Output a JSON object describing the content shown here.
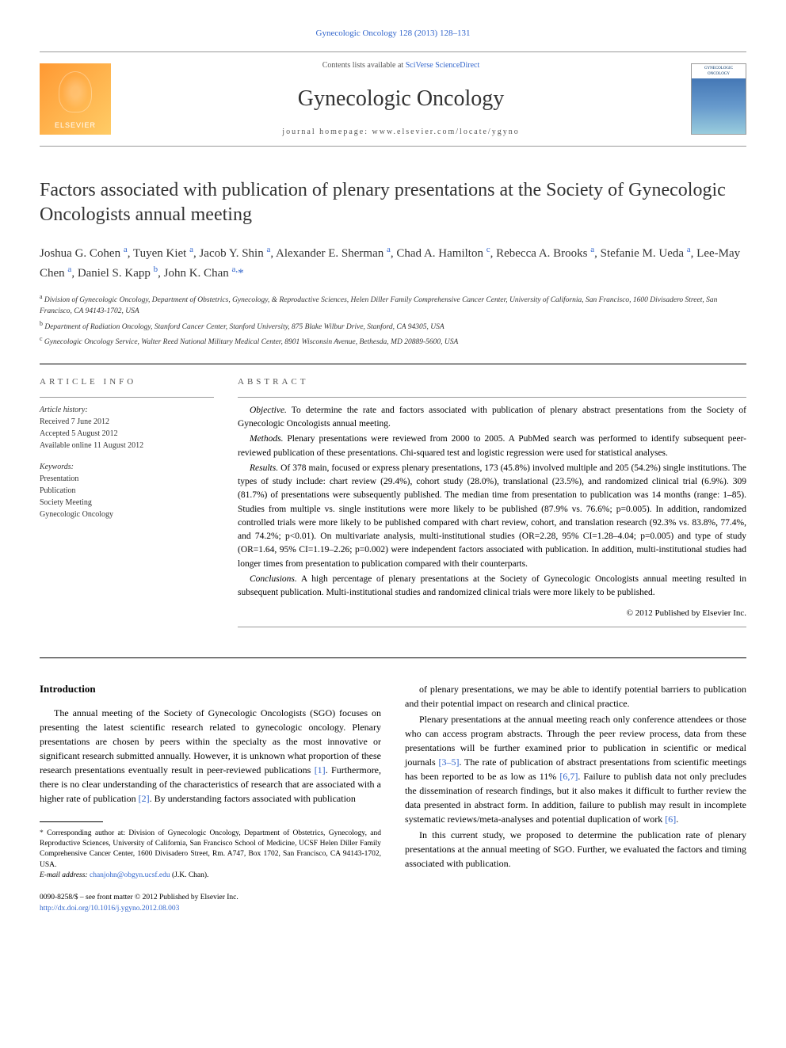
{
  "header": {
    "top_link": "Gynecologic Oncology 128 (2013) 128–131",
    "contents_line_prefix": "Contents lists available at ",
    "contents_line_link": "SciVerse ScienceDirect",
    "journal_name": "Gynecologic Oncology",
    "homepage_label": "journal homepage: www.elsevier.com/locate/ygyno",
    "publisher_name": "ELSEVIER",
    "cover_label": "GYNECOLOGIC ONCOLOGY"
  },
  "article": {
    "title": "Factors associated with publication of plenary presentations at the Society of Gynecologic Oncologists annual meeting",
    "authors_html": "Joshua G. Cohen <sup class='affil-sup'>a</sup>, Tuyen Kiet <sup class='affil-sup'>a</sup>, Jacob Y. Shin <sup class='affil-sup'>a</sup>, Alexander E. Sherman <sup class='affil-sup'>a</sup>, Chad A. Hamilton <sup class='affil-sup'>c</sup>, Rebecca A. Brooks <sup class='affil-sup'>a</sup>, Stefanie M. Ueda <sup class='affil-sup'>a</sup>, Lee-May Chen <sup class='affil-sup'>a</sup>, Daniel S. Kapp <sup class='affil-sup'>b</sup>, John K. Chan <sup class='affil-sup'>a,</sup><span class='star'>*</span>",
    "affiliations": [
      {
        "sup": "a",
        "text": "Division of Gynecologic Oncology, Department of Obstetrics, Gynecology, & Reproductive Sciences, Helen Diller Family Comprehensive Cancer Center, University of California, San Francisco, 1600 Divisadero Street, San Francisco, CA 94143-1702, USA"
      },
      {
        "sup": "b",
        "text": "Department of Radiation Oncology, Stanford Cancer Center, Stanford University, 875 Blake Wilbur Drive, Stanford, CA 94305, USA"
      },
      {
        "sup": "c",
        "text": "Gynecologic Oncology Service, Walter Reed National Military Medical Center, 8901 Wisconsin Avenue, Bethesda, MD 20889-5600, USA"
      }
    ]
  },
  "info": {
    "section_label": "ARTICLE INFO",
    "history_label": "Article history:",
    "received": "Received 7 June 2012",
    "accepted": "Accepted 5 August 2012",
    "online": "Available online 11 August 2012",
    "keywords_label": "Keywords:",
    "keywords": [
      "Presentation",
      "Publication",
      "Society Meeting",
      "Gynecologic Oncology"
    ]
  },
  "abstract": {
    "section_label": "ABSTRACT",
    "objective_label": "Objective.",
    "objective": "To determine the rate and factors associated with publication of plenary abstract presentations from the Society of Gynecologic Oncologists annual meeting.",
    "methods_label": "Methods.",
    "methods": "Plenary presentations were reviewed from 2000 to 2005. A PubMed search was performed to identify subsequent peer-reviewed publication of these presentations. Chi-squared test and logistic regression were used for statistical analyses.",
    "results_label": "Results.",
    "results": "Of 378 main, focused or express plenary presentations, 173 (45.8%) involved multiple and 205 (54.2%) single institutions. The types of study include: chart review (29.4%), cohort study (28.0%), translational (23.5%), and randomized clinical trial (6.9%). 309 (81.7%) of presentations were subsequently published. The median time from presentation to publication was 14 months (range: 1–85). Studies from multiple vs. single institutions were more likely to be published (87.9% vs. 76.6%; p=0.005). In addition, randomized controlled trials were more likely to be published compared with chart review, cohort, and translation research (92.3% vs. 83.8%, 77.4%, and 74.2%; p<0.01). On multivariate analysis, multi-institutional studies (OR=2.28, 95% CI=1.28–4.04; p=0.005) and type of study (OR=1.64, 95% CI=1.19–2.26; p=0.002) were independent factors associated with publication. In addition, multi-institutional studies had longer times from presentation to publication compared with their counterparts.",
    "conclusions_label": "Conclusions.",
    "conclusions": "A high percentage of plenary presentations at the Society of Gynecologic Oncologists annual meeting resulted in subsequent publication. Multi-institutional studies and randomized clinical trials were more likely to be published.",
    "copyright": "© 2012 Published by Elsevier Inc."
  },
  "body": {
    "intro_heading": "Introduction",
    "left_paras": [
      "The annual meeting of the Society of Gynecologic Oncologists (SGO) focuses on presenting the latest scientific research related to gynecologic oncology. Plenary presentations are chosen by peers within the specialty as the most innovative or significant research submitted annually. However, it is unknown what proportion of these research presentations eventually result in peer-reviewed publications [1]. Furthermore, there is no clear understanding of the characteristics of research that are associated with a higher rate of publication [2]. By understanding factors associated with publication"
    ],
    "right_paras": [
      "of plenary presentations, we may be able to identify potential barriers to publication and their potential impact on research and clinical practice.",
      "Plenary presentations at the annual meeting reach only conference attendees or those who can access program abstracts. Through the peer review process, data from these presentations will be further examined prior to publication in scientific or medical journals [3–5]. The rate of publication of abstract presentations from scientific meetings has been reported to be as low as 11% [6,7]. Failure to publish data not only precludes the dissemination of research findings, but it also makes it difficult to further review the data presented in abstract form. In addition, failure to publish may result in incomplete systematic reviews/meta-analyses and potential duplication of work [6].",
      "In this current study, we proposed to determine the publication rate of plenary presentations at the annual meeting of SGO. Further, we evaluated the factors and timing associated with publication."
    ]
  },
  "footnotes": {
    "corresponding": "Corresponding author at: Division of Gynecologic Oncology, Department of Obstetrics, Gynecology, and Reproductive Sciences, University of California, San Francisco School of Medicine, UCSF Helen Diller Family Comprehensive Cancer Center, 1600 Divisadero Street, Rm. A747, Box 1702, San Francisco, CA 94143-1702, USA.",
    "email_label": "E-mail address:",
    "email": "chanjohn@obgyn.ucsf.edu",
    "email_suffix": "(J.K. Chan).",
    "front_matter": "0090-8258/$ – see front matter © 2012 Published by Elsevier Inc.",
    "doi": "http://dx.doi.org/10.1016/j.ygyno.2012.08.003"
  },
  "colors": {
    "link": "#3366cc",
    "text": "#000000",
    "muted": "#555555",
    "elsevier_orange": "#ff9933"
  }
}
